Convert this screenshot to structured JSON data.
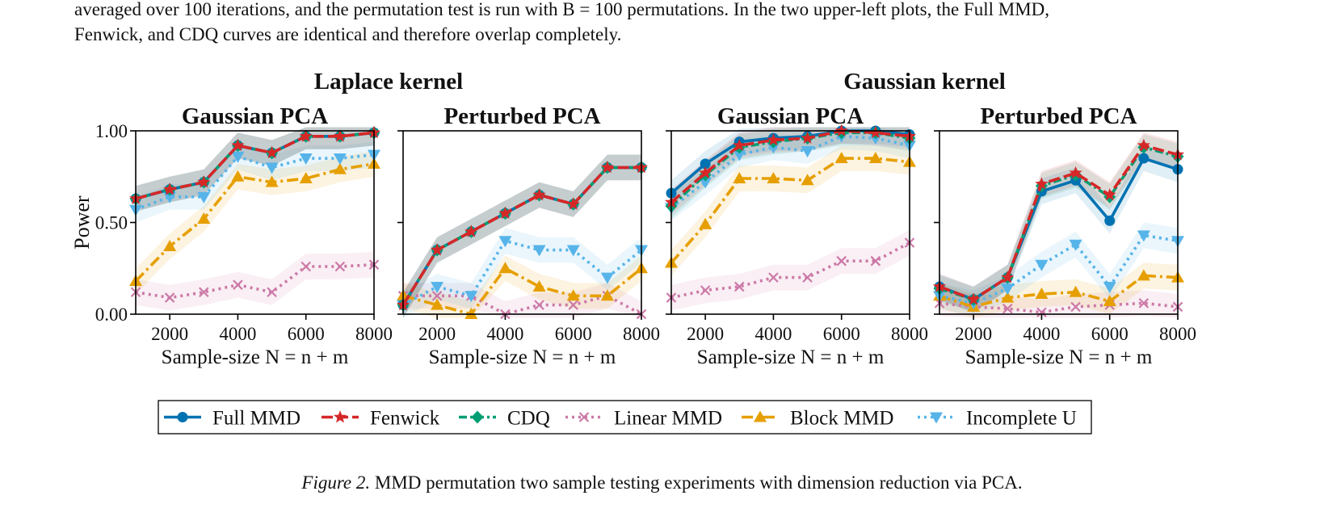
{
  "intro_lines": [
    "averaged over 100 iterations, and the permutation test is run with B = 100 permutations. In the two upper-left plots, the Full MMD,",
    "Fenwick, and CDQ curves are identical and therefore overlap completely."
  ],
  "caption": {
    "label": "Figure 2.",
    "text": "MMD permutation two sample testing experiments with dimension reduction via PCA."
  },
  "series_styles": [
    {
      "name": "Full MMD",
      "color": "#0072B2",
      "marker": "circle",
      "dash": ""
    },
    {
      "name": "Fenwick",
      "color": "#D62728",
      "marker": "star",
      "dash": "14,5"
    },
    {
      "name": "CDQ",
      "color": "#009E73",
      "marker": "diamond",
      "dash": "10,4,3,4"
    },
    {
      "name": "Linear MMD",
      "color": "#CC79A7",
      "marker": "x",
      "dash": "3,5"
    },
    {
      "name": "Block MMD",
      "color": "#E69F00",
      "marker": "triangle-up",
      "dash": "14,5,3,5"
    },
    {
      "name": "Incomplete U",
      "color": "#56B4E9",
      "marker": "triangle-down",
      "dash": "3,5"
    }
  ],
  "chart_data": [
    {
      "type": "line",
      "group": "Laplace kernel",
      "title": "Gaussian PCA",
      "xlabel": "Sample-size N = n + m",
      "ylabel": "Power",
      "x": [
        1000,
        2000,
        3000,
        4000,
        5000,
        6000,
        7000,
        8000
      ],
      "xticks": [
        2000,
        4000,
        6000,
        8000
      ],
      "yticks": [
        "0.00",
        "0.50",
        "1.00"
      ],
      "xlim": [
        1000,
        8000
      ],
      "ylim": [
        0,
        1
      ],
      "series": [
        {
          "name": "Full MMD",
          "values": [
            0.63,
            0.68,
            0.72,
            0.92,
            0.88,
            0.97,
            0.97,
            0.99
          ]
        },
        {
          "name": "Fenwick",
          "values": [
            0.63,
            0.68,
            0.72,
            0.92,
            0.88,
            0.97,
            0.97,
            0.99
          ]
        },
        {
          "name": "CDQ",
          "values": [
            0.63,
            0.68,
            0.72,
            0.92,
            0.88,
            0.97,
            0.97,
            0.99
          ]
        },
        {
          "name": "Linear MMD",
          "values": [
            0.12,
            0.09,
            0.12,
            0.16,
            0.12,
            0.26,
            0.26,
            0.27
          ]
        },
        {
          "name": "Block MMD",
          "values": [
            0.18,
            0.37,
            0.52,
            0.75,
            0.72,
            0.74,
            0.79,
            0.82
          ]
        },
        {
          "name": "Incomplete U",
          "values": [
            0.57,
            0.64,
            0.64,
            0.86,
            0.8,
            0.85,
            0.85,
            0.87
          ]
        }
      ]
    },
    {
      "type": "line",
      "group": "Laplace kernel",
      "title": "Perturbed PCA",
      "xlabel": "Sample-size N = n + m",
      "ylabel": "",
      "x": [
        1000,
        2000,
        3000,
        4000,
        5000,
        6000,
        7000,
        8000
      ],
      "xticks": [
        2000,
        4000,
        6000,
        8000
      ],
      "yticks": [],
      "xlim": [
        1000,
        8000
      ],
      "ylim": [
        0,
        1
      ],
      "series": [
        {
          "name": "Full MMD",
          "values": [
            0.05,
            0.35,
            0.45,
            0.55,
            0.65,
            0.6,
            0.8,
            0.8
          ]
        },
        {
          "name": "Fenwick",
          "values": [
            0.05,
            0.35,
            0.45,
            0.55,
            0.65,
            0.6,
            0.8,
            0.8
          ]
        },
        {
          "name": "CDQ",
          "values": [
            0.05,
            0.35,
            0.45,
            0.55,
            0.65,
            0.6,
            0.8,
            0.8
          ]
        },
        {
          "name": "Linear MMD",
          "values": [
            0.1,
            0.1,
            0.1,
            0.0,
            0.05,
            0.05,
            0.1,
            0.0
          ]
        },
        {
          "name": "Block MMD",
          "values": [
            0.1,
            0.05,
            0.0,
            0.25,
            0.15,
            0.1,
            0.1,
            0.25
          ]
        },
        {
          "name": "Incomplete U",
          "values": [
            0.05,
            0.15,
            0.1,
            0.4,
            0.35,
            0.35,
            0.2,
            0.35
          ]
        }
      ]
    },
    {
      "type": "line",
      "group": "Gaussian kernel",
      "title": "Gaussian PCA",
      "xlabel": "Sample-size N = n + m",
      "ylabel": "",
      "x": [
        1000,
        2000,
        3000,
        4000,
        5000,
        6000,
        7000,
        8000
      ],
      "xticks": [
        2000,
        4000,
        6000,
        8000
      ],
      "yticks": [],
      "xlim": [
        1000,
        8000
      ],
      "ylim": [
        0,
        1
      ],
      "series": [
        {
          "name": "Full MMD",
          "values": [
            0.66,
            0.82,
            0.94,
            0.96,
            0.97,
            1.0,
            1.0,
            0.98
          ]
        },
        {
          "name": "Fenwick",
          "values": [
            0.61,
            0.77,
            0.92,
            0.95,
            0.96,
            1.0,
            0.99,
            0.97
          ]
        },
        {
          "name": "CDQ",
          "values": [
            0.59,
            0.76,
            0.91,
            0.94,
            0.96,
            0.99,
            0.99,
            0.96
          ]
        },
        {
          "name": "Linear MMD",
          "values": [
            0.09,
            0.13,
            0.15,
            0.2,
            0.2,
            0.29,
            0.29,
            0.39
          ]
        },
        {
          "name": "Block MMD",
          "values": [
            0.28,
            0.49,
            0.74,
            0.74,
            0.73,
            0.85,
            0.85,
            0.83
          ]
        },
        {
          "name": "Incomplete U",
          "values": [
            0.58,
            0.72,
            0.87,
            0.91,
            0.89,
            0.97,
            0.96,
            0.92
          ]
        }
      ]
    },
    {
      "type": "line",
      "group": "Gaussian kernel",
      "title": "Perturbed PCA",
      "xlabel": "Sample-size N = n + m",
      "ylabel": "",
      "x": [
        1000,
        2000,
        3000,
        4000,
        5000,
        6000,
        7000,
        8000
      ],
      "xticks": [
        2000,
        4000,
        6000,
        8000
      ],
      "yticks": [],
      "xlim": [
        1000,
        8000
      ],
      "ylim": [
        0,
        1
      ],
      "series": [
        {
          "name": "Full MMD",
          "values": [
            0.15,
            0.08,
            0.2,
            0.67,
            0.73,
            0.51,
            0.85,
            0.79
          ]
        },
        {
          "name": "Fenwick",
          "values": [
            0.15,
            0.08,
            0.2,
            0.71,
            0.77,
            0.65,
            0.92,
            0.87
          ]
        },
        {
          "name": "CDQ",
          "values": [
            0.14,
            0.08,
            0.2,
            0.7,
            0.76,
            0.64,
            0.91,
            0.86
          ]
        },
        {
          "name": "Linear MMD",
          "values": [
            0.06,
            0.04,
            0.03,
            0.01,
            0.04,
            0.05,
            0.06,
            0.04
          ]
        },
        {
          "name": "Block MMD",
          "values": [
            0.1,
            0.04,
            0.09,
            0.11,
            0.12,
            0.07,
            0.21,
            0.2
          ]
        },
        {
          "name": "Incomplete U",
          "values": [
            0.1,
            0.06,
            0.14,
            0.27,
            0.38,
            0.15,
            0.43,
            0.4
          ]
        }
      ]
    }
  ]
}
